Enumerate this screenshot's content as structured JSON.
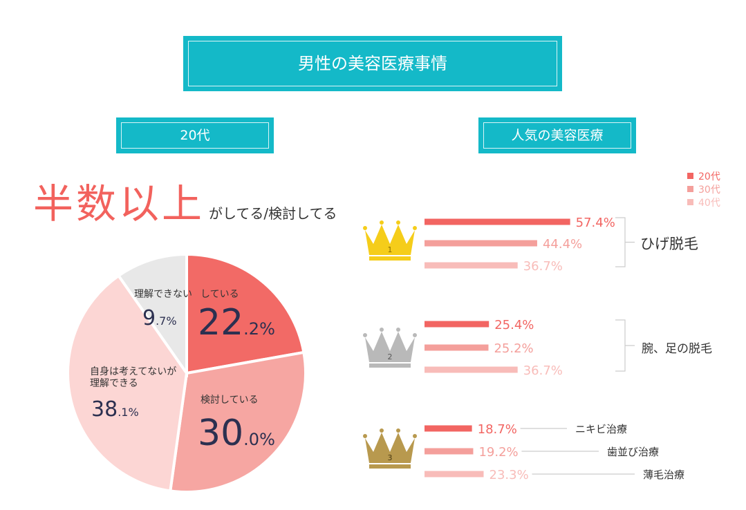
{
  "header": {
    "title": "男性の美容医療事情"
  },
  "left_section": {
    "title": "20代",
    "headline_big": "半数以上",
    "headline_small": "がしてる/検討してる"
  },
  "right_section": {
    "title": "人気の美容医療"
  },
  "chart_data": [
    {
      "type": "pie",
      "title": "",
      "pie_order": [
        "している",
        "検討している",
        "自身は考えてないが理解できる",
        "理解できない"
      ],
      "slices": [
        {
          "label": "している",
          "value": 22.2,
          "value_int": "22",
          "value_dec": ".2%",
          "color": "#f26a66"
        },
        {
          "label": "検討している",
          "value": 30.0,
          "value_int": "30",
          "value_dec": ".0%",
          "color": "#f6a6a2"
        },
        {
          "label_lines": [
            "自身は考えてないが",
            "理解できる"
          ],
          "label": "自身は考えてないが理解できる",
          "value": 38.1,
          "value_int": "38",
          "value_dec": ".1%",
          "color": "#fcd6d4"
        },
        {
          "label": "理解できない",
          "value": 9.7,
          "value_int": "9",
          "value_dec": ".7%",
          "color": "#e8e8e8"
        }
      ]
    },
    {
      "type": "bar",
      "orientation": "horizontal",
      "title": "",
      "legend": {
        "entries": [
          "20代",
          "30代",
          "40代"
        ],
        "placement": "top-right"
      },
      "series_colors": [
        "#f26562",
        "#f49f9b",
        "#f8bcb9"
      ],
      "value_colors": [
        "#f26562",
        "#f49f9b",
        "#f8bcb9"
      ],
      "groups": [
        {
          "rank": "1",
          "crown": "gold",
          "items": [
            {
              "label": "ひげ脱毛",
              "values": [
                57.4,
                44.4,
                36.7
              ],
              "value_labels": [
                "57.4%",
                "44.4%",
                "36.7%"
              ]
            }
          ]
        },
        {
          "rank": "2",
          "crown": "silver",
          "items": [
            {
              "label": "腕、足の脱毛",
              "values": [
                25.4,
                25.2,
                36.7
              ],
              "value_labels": [
                "25.4%",
                "25.2%",
                "36.7%"
              ]
            }
          ]
        },
        {
          "rank": "3",
          "crown": "bronze",
          "items": [
            {
              "label": "ニキビ治療",
              "values": [
                18.7
              ],
              "value_labels": [
                "18.7%"
              ]
            },
            {
              "label": "歯並び治療",
              "values": [
                19.2
              ],
              "value_labels": [
                "19.2%"
              ]
            },
            {
              "label": "薄毛治療",
              "values": [
                23.3
              ],
              "value_labels": [
                "23.3%"
              ]
            }
          ]
        }
      ]
    }
  ]
}
